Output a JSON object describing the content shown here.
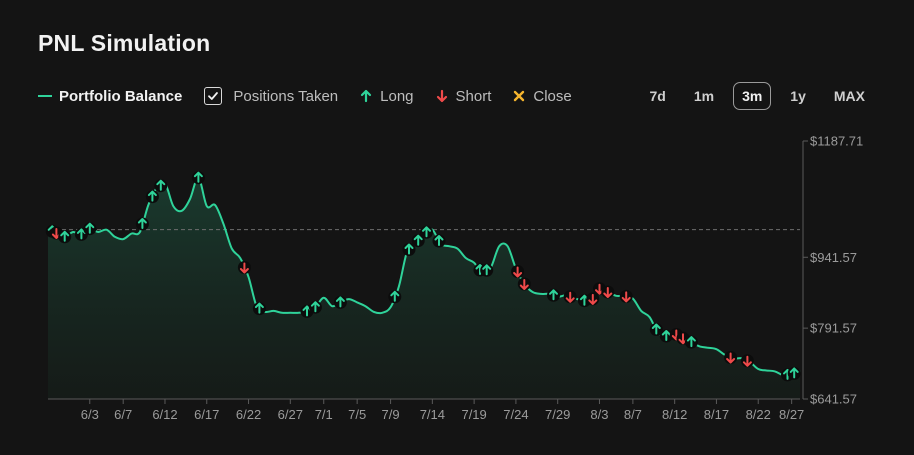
{
  "title": "PNL Simulation",
  "legend": {
    "balance_label": "Portfolio Balance",
    "positions_label": "Positions Taken",
    "positions_checked": true,
    "long_label": "Long",
    "short_label": "Short",
    "close_label": "Close"
  },
  "periods": [
    "7d",
    "1m",
    "3m",
    "1y",
    "MAX"
  ],
  "active_period": "3m",
  "colors": {
    "line": "#2fd39a",
    "long": "#2fd39a",
    "short": "#ef4a4a",
    "close": "#f5b52e",
    "baseline": "#6e6e6e"
  },
  "chart_data": {
    "type": "area",
    "title": "PNL Simulation",
    "series": [
      {
        "name": "Portfolio Balance"
      }
    ],
    "x_tick_labels": [
      "6/3",
      "6/7",
      "6/12",
      "6/17",
      "6/22",
      "6/27",
      "7/1",
      "7/5",
      "7/9",
      "7/14",
      "7/19",
      "7/24",
      "7/29",
      "8/3",
      "8/7",
      "8/12",
      "8/17",
      "8/22",
      "8/27"
    ],
    "y_tick_labels": [
      "$1187.71",
      "$941.57",
      "$791.57",
      "$641.57"
    ],
    "y_ticks": [
      1187.71,
      941.57,
      791.57,
      641.57
    ],
    "ylim": [
      641.57,
      1187.71
    ],
    "start_balance": 1000,
    "x_day_range": [
      0,
      90
    ],
    "x_tick_days": [
      5,
      9,
      14,
      19,
      24,
      29,
      33,
      37,
      41,
      46,
      51,
      56,
      61,
      66,
      70,
      75,
      80,
      85,
      89
    ],
    "points": [
      [
        0,
        1000
      ],
      [
        1,
        993
      ],
      [
        2,
        985
      ],
      [
        3,
        995
      ],
      [
        4,
        990
      ],
      [
        5,
        1002
      ],
      [
        6,
        995
      ],
      [
        7,
        1000
      ],
      [
        8,
        985
      ],
      [
        9,
        980
      ],
      [
        10,
        992
      ],
      [
        11,
        995
      ],
      [
        12,
        1052
      ],
      [
        13,
        1088
      ],
      [
        14,
        1098
      ],
      [
        15,
        1050
      ],
      [
        16,
        1040
      ],
      [
        17,
        1065
      ],
      [
        18,
        1110
      ],
      [
        19,
        1050
      ],
      [
        20,
        1052
      ],
      [
        21,
        1012
      ],
      [
        22,
        960
      ],
      [
        23,
        940
      ],
      [
        24,
        900
      ],
      [
        25,
        836
      ],
      [
        26,
        826
      ],
      [
        27,
        828
      ],
      [
        28,
        824
      ],
      [
        29,
        824
      ],
      [
        30,
        824
      ],
      [
        31,
        827
      ],
      [
        32,
        836
      ],
      [
        33,
        856
      ],
      [
        34,
        838
      ],
      [
        35,
        846
      ],
      [
        36,
        853
      ],
      [
        37,
        846
      ],
      [
        38,
        838
      ],
      [
        39,
        826
      ],
      [
        40,
        824
      ],
      [
        41,
        836
      ],
      [
        42,
        880
      ],
      [
        43,
        955
      ],
      [
        44,
        970
      ],
      [
        45,
        992
      ],
      [
        46,
        1000
      ],
      [
        47,
        970
      ],
      [
        48,
        965
      ],
      [
        49,
        960
      ],
      [
        50,
        940
      ],
      [
        51,
        930
      ],
      [
        52,
        908
      ],
      [
        53,
        920
      ],
      [
        54,
        965
      ],
      [
        55,
        965
      ],
      [
        56,
        918
      ],
      [
        57,
        885
      ],
      [
        58,
        868
      ],
      [
        59,
        864
      ],
      [
        60,
        864
      ],
      [
        61,
        858
      ],
      [
        62,
        861
      ],
      [
        63,
        855
      ],
      [
        64,
        850
      ],
      [
        65,
        848
      ],
      [
        66,
        875
      ],
      [
        67,
        868
      ],
      [
        68,
        860
      ],
      [
        69,
        860
      ],
      [
        70,
        854
      ],
      [
        71,
        828
      ],
      [
        72,
        815
      ],
      [
        73,
        782
      ],
      [
        74,
        775
      ],
      [
        75,
        780
      ],
      [
        76,
        770
      ],
      [
        77,
        762
      ],
      [
        78,
        753
      ],
      [
        79,
        750
      ],
      [
        80,
        747
      ],
      [
        81,
        735
      ],
      [
        82,
        727
      ],
      [
        83,
        728
      ],
      [
        84,
        720
      ],
      [
        85,
        705
      ],
      [
        86,
        702
      ],
      [
        87,
        700
      ],
      [
        88,
        692
      ],
      [
        89,
        693
      ],
      [
        90,
        702
      ]
    ],
    "positions": [
      {
        "day": 0.5,
        "type": "long"
      },
      {
        "day": 1,
        "type": "short"
      },
      {
        "day": 2,
        "type": "long"
      },
      {
        "day": 4,
        "type": "long"
      },
      {
        "day": 5,
        "type": "long"
      },
      {
        "day": 11.3,
        "type": "long"
      },
      {
        "day": 12.5,
        "type": "long"
      },
      {
        "day": 13.5,
        "type": "long"
      },
      {
        "day": 18,
        "type": "long"
      },
      {
        "day": 23.5,
        "type": "short"
      },
      {
        "day": 25.3,
        "type": "long"
      },
      {
        "day": 31,
        "type": "long"
      },
      {
        "day": 32,
        "type": "long"
      },
      {
        "day": 35,
        "type": "long"
      },
      {
        "day": 41.5,
        "type": "long"
      },
      {
        "day": 43.2,
        "type": "long"
      },
      {
        "day": 44.3,
        "type": "long"
      },
      {
        "day": 45.3,
        "type": "long"
      },
      {
        "day": 46.8,
        "type": "long"
      },
      {
        "day": 51.7,
        "type": "long"
      },
      {
        "day": 52.5,
        "type": "long"
      },
      {
        "day": 56.2,
        "type": "short"
      },
      {
        "day": 57,
        "type": "short"
      },
      {
        "day": 60.5,
        "type": "long"
      },
      {
        "day": 62.5,
        "type": "short"
      },
      {
        "day": 64.2,
        "type": "long"
      },
      {
        "day": 65.2,
        "type": "short"
      },
      {
        "day": 66,
        "type": "short"
      },
      {
        "day": 67,
        "type": "short"
      },
      {
        "day": 69.2,
        "type": "short"
      },
      {
        "day": 72.8,
        "type": "long"
      },
      {
        "day": 74,
        "type": "long"
      },
      {
        "day": 75.2,
        "type": "short"
      },
      {
        "day": 76,
        "type": "short"
      },
      {
        "day": 77,
        "type": "long"
      },
      {
        "day": 81.7,
        "type": "short"
      },
      {
        "day": 83.7,
        "type": "short"
      },
      {
        "day": 88.5,
        "type": "long"
      },
      {
        "day": 89.3,
        "type": "long"
      }
    ]
  }
}
